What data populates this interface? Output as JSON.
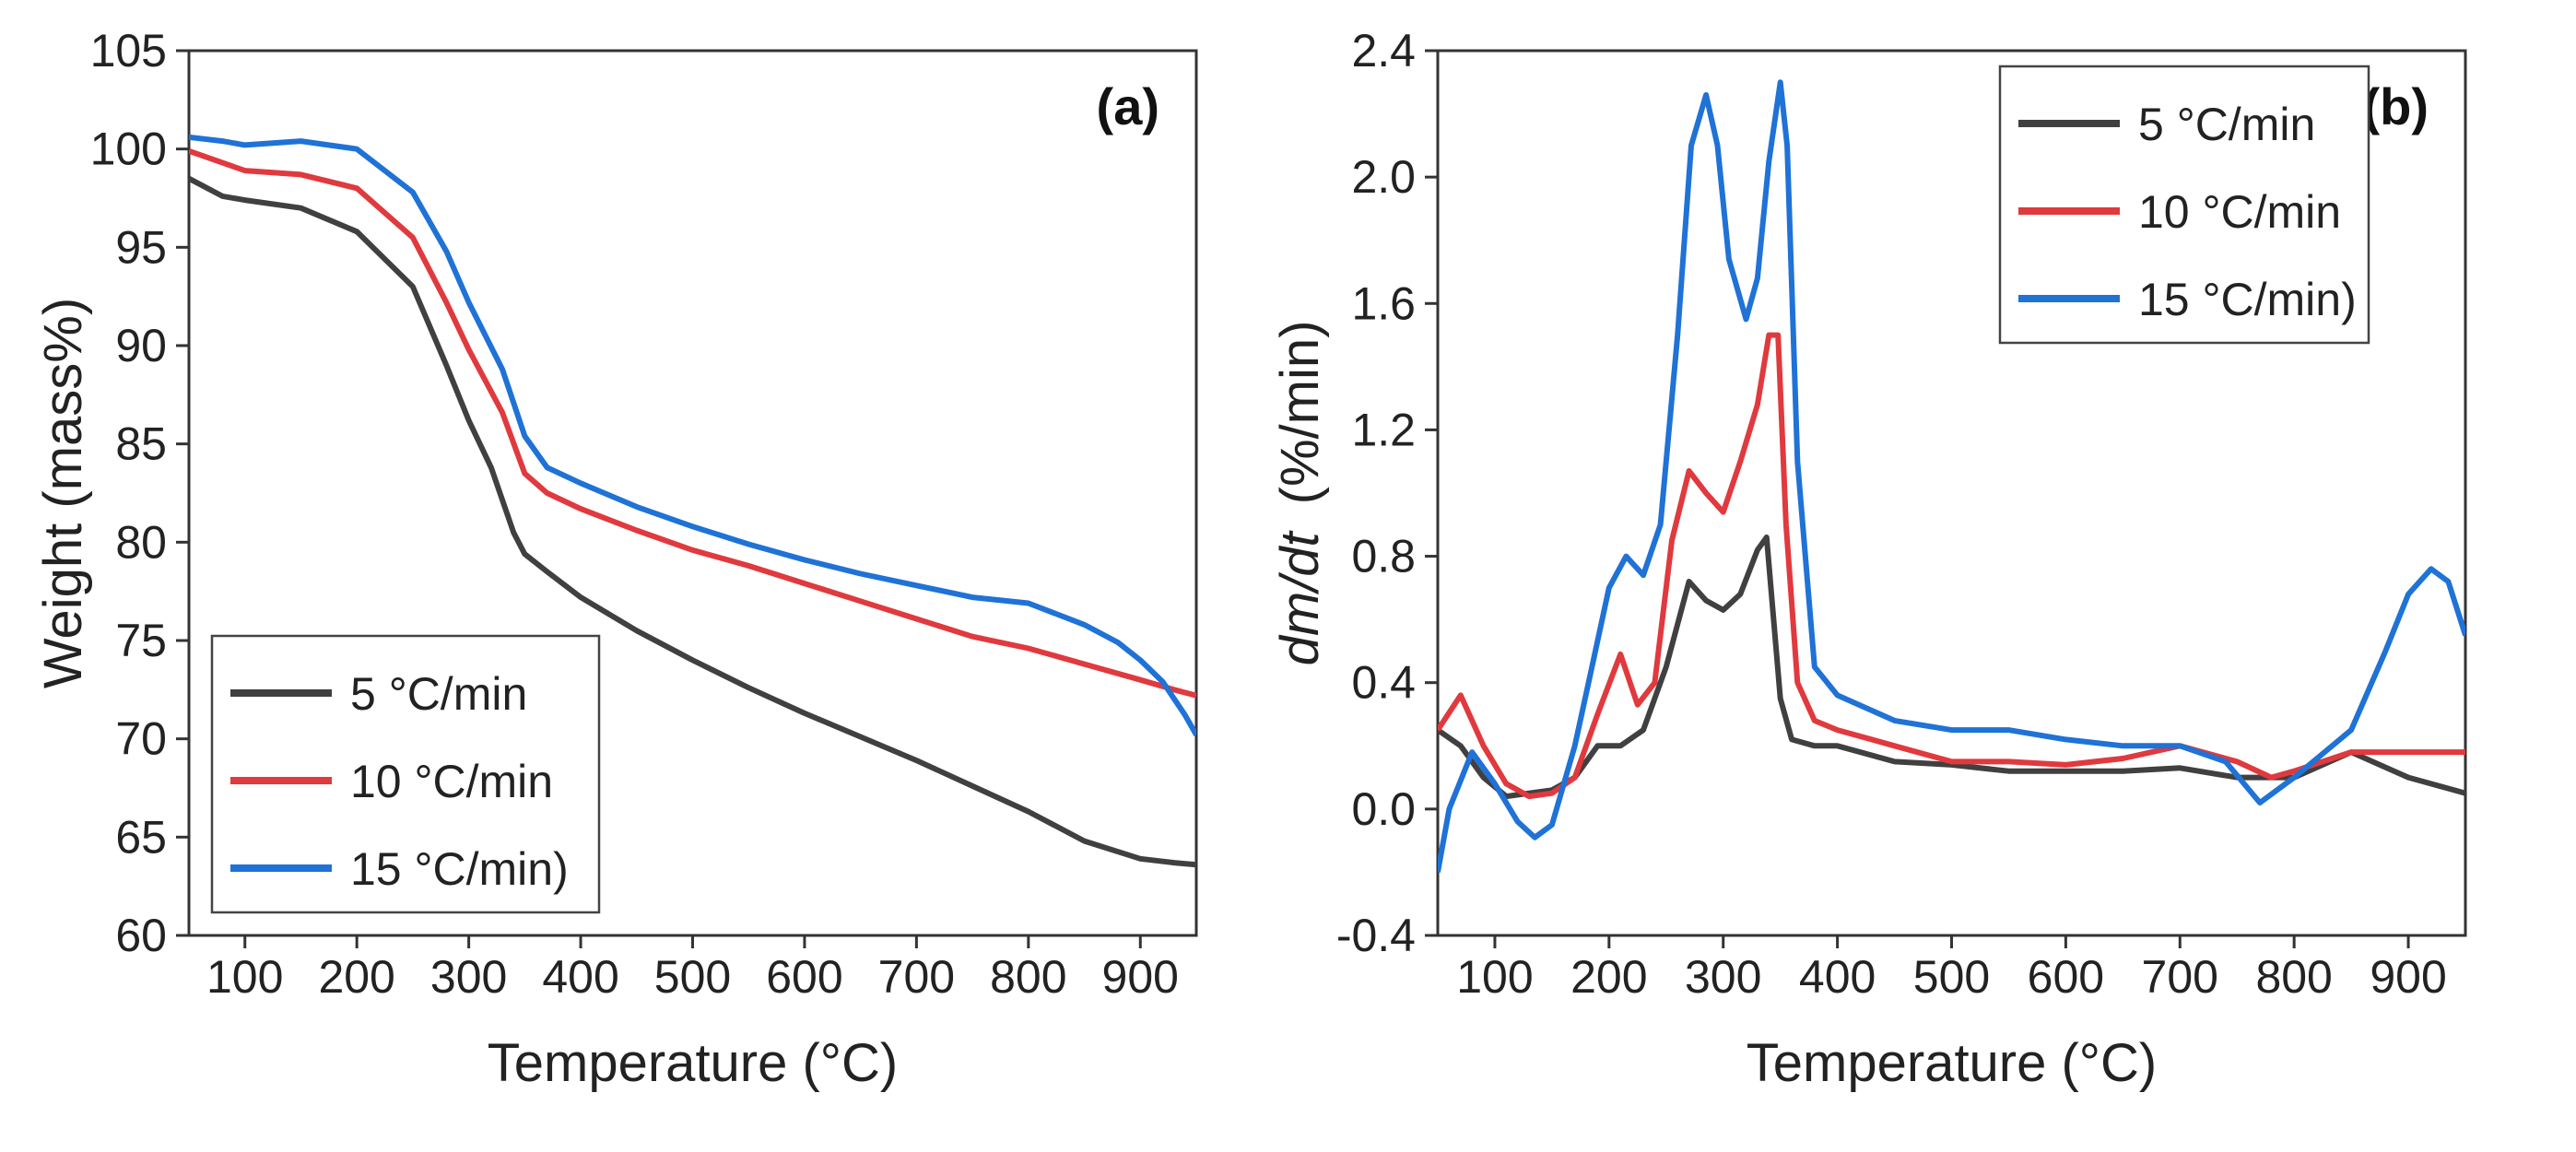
{
  "colors": {
    "s5": "#404040",
    "s10": "#e0393e",
    "s15": "#1f72d6"
  },
  "chart_data": [
    {
      "type": "line",
      "panel_label": "(a)",
      "xlabel": "Temperature (°C)",
      "ylabel": "Weight (mass%)",
      "xlim": [
        50,
        950
      ],
      "ylim": [
        60,
        105
      ],
      "xticks": [
        100,
        200,
        300,
        400,
        500,
        600,
        700,
        800,
        900
      ],
      "yticks": [
        60,
        65,
        70,
        75,
        80,
        85,
        90,
        95,
        100,
        105
      ],
      "legend_position": "bottom-left",
      "series": [
        {
          "name": "5 °C/min",
          "color": "#404040",
          "x": [
            50,
            80,
            100,
            150,
            200,
            250,
            280,
            300,
            320,
            340,
            350,
            370,
            400,
            450,
            500,
            550,
            600,
            650,
            700,
            750,
            800,
            850,
            900,
            930,
            950
          ],
          "y": [
            98.5,
            97.6,
            97.4,
            97.0,
            95.8,
            93.0,
            89.0,
            86.2,
            83.8,
            80.5,
            79.4,
            78.5,
            77.2,
            75.5,
            74.0,
            72.6,
            71.3,
            70.1,
            68.9,
            67.6,
            66.3,
            64.8,
            63.9,
            63.7,
            63.6
          ]
        },
        {
          "name": "10 °C/min",
          "color": "#e0393e",
          "x": [
            50,
            80,
            100,
            150,
            200,
            250,
            280,
            300,
            330,
            350,
            370,
            400,
            450,
            500,
            550,
            600,
            650,
            700,
            750,
            800,
            850,
            900,
            930,
            950
          ],
          "y": [
            99.9,
            99.3,
            98.9,
            98.7,
            98.0,
            95.5,
            92.2,
            89.8,
            86.6,
            83.5,
            82.5,
            81.7,
            80.6,
            79.6,
            78.8,
            77.9,
            77.0,
            76.1,
            75.2,
            74.6,
            73.8,
            73.0,
            72.5,
            72.2
          ]
        },
        {
          "name": "15 °C/min)",
          "color": "#1f72d6",
          "x": [
            50,
            80,
            100,
            150,
            200,
            250,
            280,
            300,
            330,
            350,
            370,
            400,
            450,
            500,
            550,
            600,
            650,
            700,
            750,
            800,
            850,
            880,
            900,
            920,
            940,
            950
          ],
          "y": [
            100.6,
            100.4,
            100.2,
            100.4,
            100.0,
            97.8,
            94.8,
            92.2,
            88.8,
            85.4,
            83.8,
            83.0,
            81.8,
            80.8,
            79.9,
            79.1,
            78.4,
            77.8,
            77.2,
            76.9,
            75.8,
            74.9,
            74.0,
            72.9,
            71.2,
            70.2
          ]
        }
      ]
    },
    {
      "type": "line",
      "panel_label": "(b)",
      "xlabel": "Temperature (°C)",
      "ylabel_italic": "dm/dt",
      "ylabel_unit": "(%/min)",
      "xlim": [
        50,
        950
      ],
      "ylim": [
        -0.4,
        2.4
      ],
      "xticks": [
        100,
        200,
        300,
        400,
        500,
        600,
        700,
        800,
        900
      ],
      "yticks": [
        -0.4,
        0.0,
        0.4,
        0.8,
        1.2,
        1.6,
        2.0,
        2.4
      ],
      "ytick_labels": [
        "-0.4",
        "0.0",
        "0.4",
        "0.8",
        "1.2",
        "1.6",
        "2.0",
        "2.4"
      ],
      "legend_position": "top-right",
      "series": [
        {
          "name": "5 °C/min",
          "color": "#404040",
          "x": [
            50,
            70,
            90,
            110,
            130,
            150,
            170,
            190,
            210,
            230,
            250,
            270,
            285,
            300,
            315,
            330,
            338,
            350,
            360,
            380,
            400,
            450,
            500,
            550,
            600,
            650,
            700,
            750,
            800,
            850,
            900,
            950
          ],
          "y": [
            0.25,
            0.2,
            0.1,
            0.04,
            0.05,
            0.06,
            0.1,
            0.2,
            0.2,
            0.25,
            0.45,
            0.72,
            0.66,
            0.63,
            0.68,
            0.82,
            0.86,
            0.35,
            0.22,
            0.2,
            0.2,
            0.15,
            0.14,
            0.12,
            0.12,
            0.12,
            0.13,
            0.1,
            0.1,
            0.18,
            0.1,
            0.05
          ]
        },
        {
          "name": "10 °C/min",
          "color": "#e0393e",
          "x": [
            50,
            70,
            90,
            110,
            130,
            150,
            170,
            190,
            210,
            225,
            240,
            255,
            270,
            285,
            300,
            315,
            330,
            340,
            348,
            355,
            365,
            380,
            400,
            450,
            500,
            550,
            600,
            650,
            700,
            750,
            780,
            800,
            850,
            900,
            950
          ],
          "y": [
            0.25,
            0.36,
            0.2,
            0.08,
            0.04,
            0.05,
            0.1,
            0.3,
            0.49,
            0.33,
            0.4,
            0.85,
            1.07,
            1.0,
            0.94,
            1.1,
            1.28,
            1.5,
            1.5,
            0.9,
            0.4,
            0.28,
            0.25,
            0.2,
            0.15,
            0.15,
            0.14,
            0.16,
            0.2,
            0.15,
            0.1,
            0.12,
            0.18,
            0.18,
            0.18
          ]
        },
        {
          "name": "15 °C/min)",
          "color": "#1f72d6",
          "x": [
            50,
            60,
            80,
            100,
            120,
            135,
            150,
            170,
            185,
            200,
            215,
            230,
            245,
            260,
            272,
            285,
            295,
            305,
            320,
            330,
            340,
            350,
            356,
            365,
            380,
            400,
            450,
            500,
            550,
            600,
            650,
            700,
            740,
            770,
            800,
            850,
            880,
            900,
            920,
            935,
            950
          ],
          "y": [
            -0.2,
            0.0,
            0.18,
            0.08,
            -0.04,
            -0.09,
            -0.05,
            0.2,
            0.45,
            0.7,
            0.8,
            0.74,
            0.9,
            1.5,
            2.1,
            2.26,
            2.1,
            1.74,
            1.55,
            1.68,
            2.05,
            2.3,
            2.1,
            1.1,
            0.45,
            0.36,
            0.28,
            0.25,
            0.25,
            0.22,
            0.2,
            0.2,
            0.15,
            0.02,
            0.1,
            0.25,
            0.5,
            0.68,
            0.76,
            0.72,
            0.55
          ]
        }
      ]
    }
  ]
}
